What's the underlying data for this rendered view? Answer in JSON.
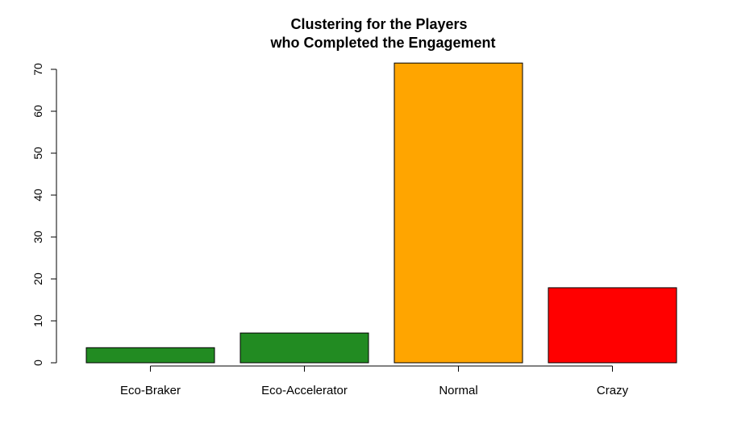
{
  "chart_data": {
    "type": "bar",
    "title_lines": [
      "Clustering for the Players",
      "who Completed the Engagement"
    ],
    "categories": [
      "Eco-Braker",
      "Eco-Accelerator",
      "Normal",
      "Crazy"
    ],
    "values": [
      3.6,
      7.1,
      71.5,
      17.9
    ],
    "colors": [
      "#228b22",
      "#228b22",
      "#ffa500",
      "#ff0000"
    ],
    "yticks": [
      "0",
      "10",
      "20",
      "30",
      "40",
      "50",
      "60",
      "70"
    ],
    "ylim": [
      0,
      72
    ],
    "xlabel": "",
    "ylabel": "",
    "grid": false,
    "legend": "none"
  }
}
